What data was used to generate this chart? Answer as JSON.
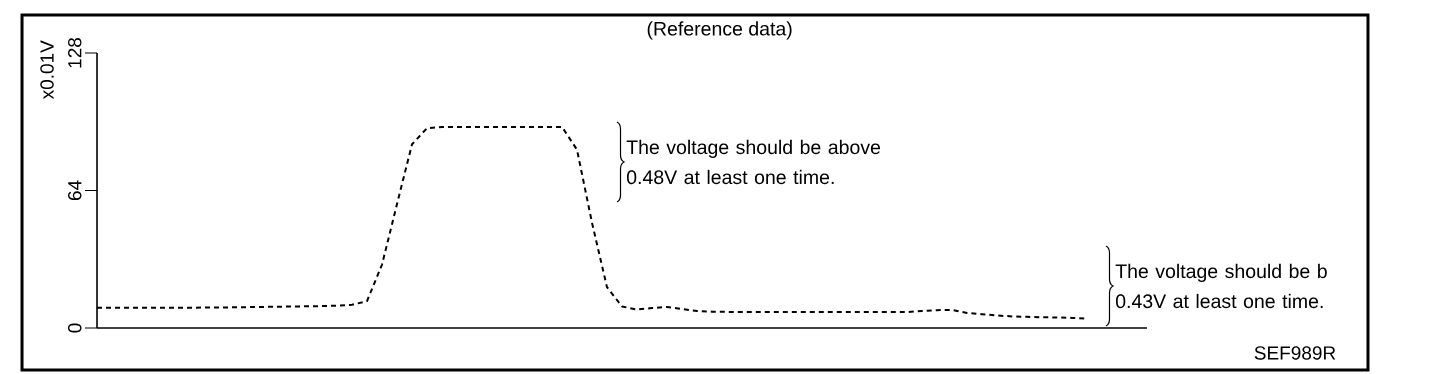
{
  "chart_data": {
    "type": "line",
    "title": "(Reference data)",
    "ylabel": "x0.01V",
    "categories": [
      null,
      null,
      null,
      null,
      null,
      null,
      null,
      null,
      null,
      null,
      null,
      null,
      null,
      null,
      null,
      null,
      null,
      null,
      null,
      null,
      null,
      null,
      null,
      null,
      null,
      null,
      null,
      null,
      null,
      null,
      null,
      null,
      null,
      null,
      null,
      null,
      null,
      null,
      null,
      null,
      null,
      null,
      null,
      null,
      null,
      null,
      null,
      null,
      null,
      null,
      null,
      null,
      null,
      null,
      null,
      null,
      null,
      null,
      null,
      null,
      null,
      null,
      null,
      null,
      null,
      null,
      null
    ],
    "series": [
      {
        "color": "#000000",
        "values": [
          9.4,
          9.4,
          9.4,
          9.4,
          9.4,
          9.4,
          9.4,
          9.5,
          9.5,
          9.6,
          9.7,
          9.8,
          9.9,
          10.0,
          10.1,
          10.2,
          10.4,
          10.8,
          12.5,
          29.5,
          57.7,
          85.5,
          93.0,
          93.6,
          93.6,
          93.6,
          93.6,
          93.6,
          93.6,
          93.6,
          93.6,
          93.6,
          83,
          49,
          19,
          10,
          8.6,
          9.3,
          9.8,
          8.8,
          7.9,
          7.6,
          7.5,
          7.4,
          7.4,
          7.4,
          7.4,
          7.4,
          7.4,
          7.4,
          7.4,
          7.4,
          7.4,
          7.4,
          7.4,
          7.9,
          8.3,
          8.4,
          7.0,
          6.4,
          5.8,
          5.4,
          5.2,
          5.0,
          4.9,
          4.7,
          4.3
        ]
      }
    ],
    "ylim": [
      0,
      128
    ],
    "yticks": [
      0,
      64,
      128
    ],
    "line_style": "dashed",
    "marker": "none",
    "tick_labels": "y",
    "annotations": [
      "The voltage should be above 0.48V at least one time.",
      "The voltage should be b 0.43V at least one time.",
      "SEF989R"
    ]
  }
}
